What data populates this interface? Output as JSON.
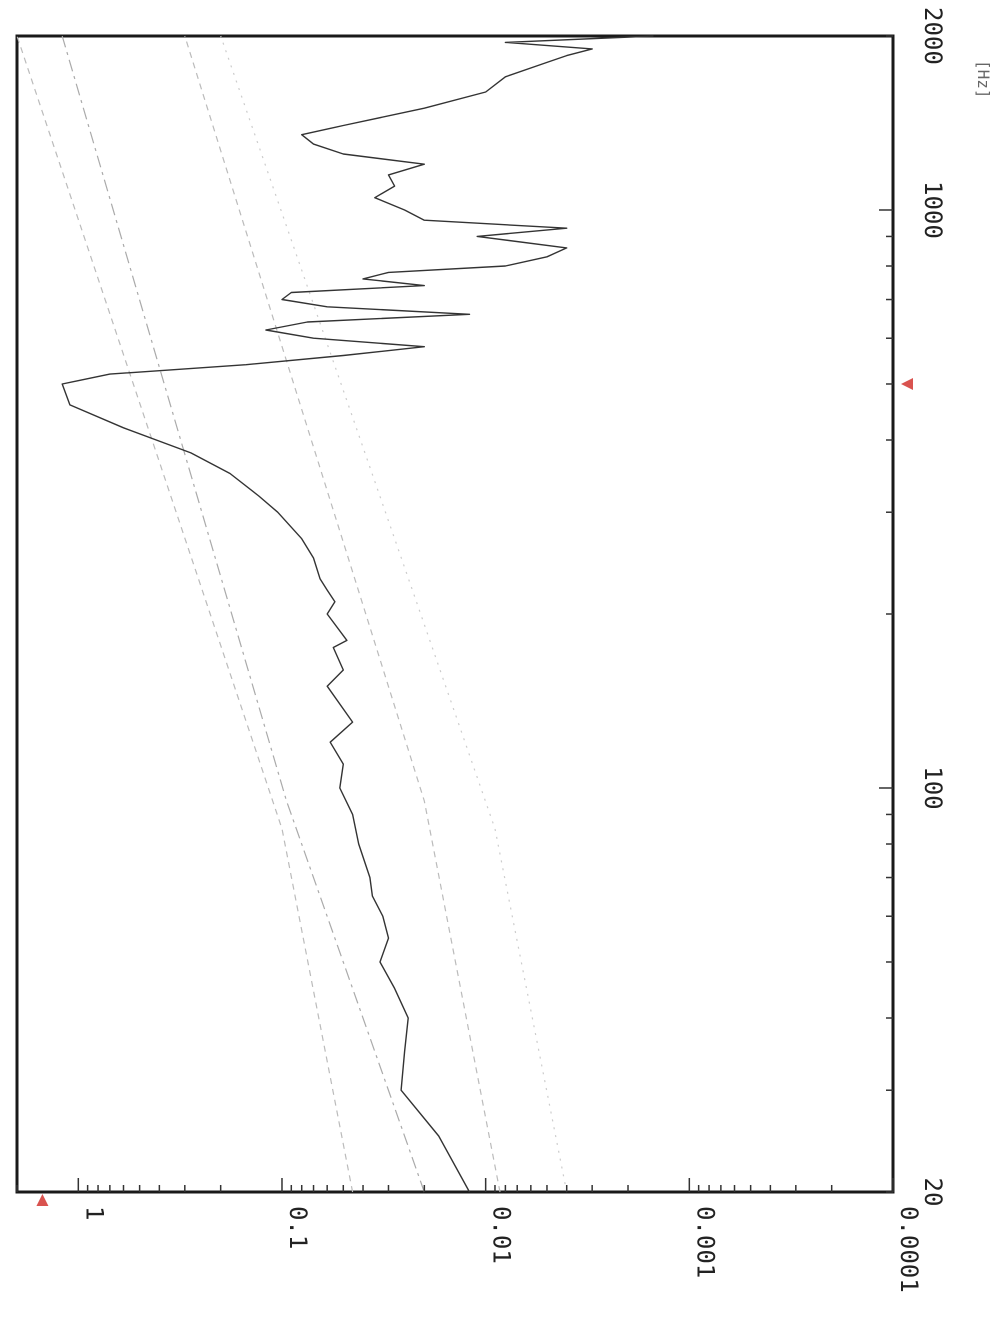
{
  "chart_data": {
    "type": "line",
    "orientation": "rotated-90-clockwise",
    "x_scale": "log",
    "y_scale": "log",
    "xlim": [
      20,
      2000
    ],
    "ylim": [
      0.0001,
      2
    ],
    "x_unit": "[Hz]",
    "x_tick_labels": [
      "20",
      "100",
      "1000",
      "2000"
    ],
    "x_tick_values": [
      20,
      100,
      1000,
      2000
    ],
    "y_tick_labels": [
      "1",
      "0.1",
      "0.01",
      "0.001",
      "0.0001"
    ],
    "y_tick_values": [
      1,
      0.1,
      0.01,
      0.001,
      0.0001
    ],
    "markers": [
      {
        "x": 20,
        "y": 1.5
      },
      {
        "x": 500,
        "y": 0.0001
      }
    ],
    "series": [
      {
        "color": "#333333",
        "x": [
          20,
          25,
          30,
          35,
          40,
          45,
          50,
          55,
          60,
          65,
          70,
          80,
          90,
          100,
          110,
          120,
          130,
          150,
          160,
          175,
          180,
          200,
          210,
          220,
          230,
          250,
          270,
          300,
          320,
          350,
          380,
          420,
          460,
          500,
          520,
          540,
          560,
          580,
          600,
          620,
          640,
          660,
          680,
          700,
          720,
          740,
          760,
          780,
          800,
          830,
          860,
          900,
          930,
          960,
          1000,
          1050,
          1100,
          1150,
          1200,
          1250,
          1300,
          1350,
          1400,
          1500,
          1600,
          1700,
          1800,
          1850,
          1900,
          1950,
          2000
        ],
        "y": [
          0.012,
          0.017,
          0.026,
          0.025,
          0.024,
          0.028,
          0.033,
          0.03,
          0.032,
          0.036,
          0.037,
          0.042,
          0.045,
          0.052,
          0.05,
          0.058,
          0.045,
          0.06,
          0.05,
          0.056,
          0.048,
          0.06,
          0.055,
          0.06,
          0.065,
          0.07,
          0.08,
          0.105,
          0.13,
          0.18,
          0.28,
          0.6,
          1.1,
          1.2,
          0.7,
          0.15,
          0.05,
          0.02,
          0.07,
          0.12,
          0.075,
          0.012,
          0.06,
          0.1,
          0.09,
          0.02,
          0.04,
          0.03,
          0.008,
          0.005,
          0.004,
          0.011,
          0.004,
          0.02,
          0.025,
          0.035,
          0.028,
          0.03,
          0.02,
          0.05,
          0.07,
          0.08,
          0.05,
          0.02,
          0.01,
          0.008,
          0.005,
          0.004,
          0.003,
          0.008,
          0.0015
        ]
      }
    ],
    "guide_lines": [
      {
        "color": "#bbbbbb",
        "dash": "6,5",
        "x": [
          20,
          85,
          2000
        ],
        "y": [
          0.045,
          0.1,
          2.0
        ]
      },
      {
        "color": "#aaaaaa",
        "dash": "12,5,3,5",
        "x": [
          20,
          95,
          2000
        ],
        "y": [
          0.02,
          0.095,
          1.2
        ]
      },
      {
        "color": "#bbbbbb",
        "dash": "6,5",
        "x": [
          20,
          95,
          2000
        ],
        "y": [
          0.0085,
          0.02,
          0.3
        ]
      },
      {
        "color": "#cccccc",
        "dash": "2,6",
        "x": [
          20,
          85,
          2000
        ],
        "y": [
          0.004,
          0.009,
          0.2
        ]
      }
    ]
  }
}
